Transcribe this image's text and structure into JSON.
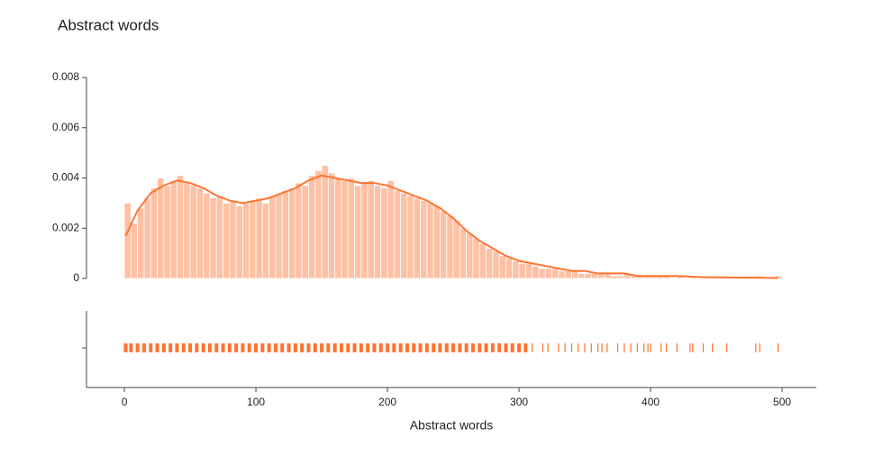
{
  "chart_data": {
    "type": "histogram",
    "title": "Abstract words",
    "x_label": "Abstract words",
    "color": "#ff7433",
    "bins": [
      0,
      5,
      10,
      15,
      20,
      25,
      30,
      35,
      40,
      45,
      50,
      55,
      60,
      65,
      70,
      75,
      80,
      85,
      90,
      95,
      100,
      105,
      110,
      115,
      120,
      125,
      130,
      135,
      140,
      145,
      150,
      155,
      160,
      165,
      170,
      175,
      180,
      185,
      190,
      195,
      200,
      205,
      210,
      215,
      220,
      225,
      230,
      235,
      240,
      245,
      250,
      255,
      260,
      265,
      270,
      275,
      280,
      285,
      290,
      295,
      300,
      305,
      310,
      315,
      320,
      325,
      330,
      335,
      340,
      345,
      350,
      355,
      360,
      365,
      370,
      375,
      380,
      385,
      390,
      395,
      400,
      405,
      410,
      415,
      420,
      425,
      430,
      435,
      440,
      445,
      450,
      455,
      460,
      465,
      470,
      475,
      480,
      485,
      490,
      495,
      500
    ],
    "values": [
      0.003,
      0.0022,
      0.0028,
      0.0032,
      0.0036,
      0.004,
      0.0037,
      0.0039,
      0.0041,
      0.0038,
      0.0037,
      0.0036,
      0.0034,
      0.0032,
      0.0033,
      0.003,
      0.0031,
      0.0029,
      0.003,
      0.0031,
      0.0032,
      0.003,
      0.0033,
      0.0034,
      0.0035,
      0.0036,
      0.0038,
      0.0037,
      0.0041,
      0.0043,
      0.0045,
      0.0042,
      0.004,
      0.0039,
      0.004,
      0.0037,
      0.0038,
      0.0039,
      0.0037,
      0.0036,
      0.0039,
      0.0035,
      0.0034,
      0.0033,
      0.0032,
      0.0031,
      0.003,
      0.0029,
      0.0027,
      0.0025,
      0.0023,
      0.002,
      0.0018,
      0.0016,
      0.0014,
      0.0012,
      0.0011,
      0.0009,
      0.0008,
      0.0007,
      0.0006,
      0.0006,
      0.0005,
      0.0004,
      0.0004,
      0.0004,
      0.0003,
      0.0003,
      0.0003,
      0.0002,
      0.0002,
      0.0002,
      0.0002,
      0.0002,
      0.0001,
      0.0001,
      0.0002,
      0.0001,
      0.0001,
      0.0001,
      0.0001,
      0.0001,
      0.0001,
      0,
      0.0001,
      0,
      0.0001,
      0,
      0.0001,
      0,
      0,
      0.0001,
      0,
      0,
      0,
      0,
      0.0001,
      0,
      0,
      0.0001
    ],
    "kde": {
      "x": [
        1,
        10,
        20,
        30,
        40,
        50,
        60,
        70,
        80,
        90,
        100,
        110,
        120,
        130,
        140,
        150,
        160,
        170,
        180,
        190,
        200,
        210,
        220,
        230,
        240,
        250,
        260,
        270,
        280,
        290,
        300,
        310,
        320,
        330,
        340,
        350,
        360,
        370,
        380,
        390,
        400,
        420,
        440,
        460,
        480,
        497
      ],
      "values": [
        0.0017,
        0.0027,
        0.0034,
        0.0037,
        0.0039,
        0.0038,
        0.0036,
        0.0033,
        0.0031,
        0.003,
        0.0031,
        0.0032,
        0.0034,
        0.0036,
        0.0039,
        0.0041,
        0.004,
        0.0039,
        0.0038,
        0.0038,
        0.0037,
        0.0035,
        0.0033,
        0.0031,
        0.0028,
        0.0024,
        0.0019,
        0.0015,
        0.0012,
        0.0009,
        0.0007,
        0.0006,
        0.0005,
        0.0004,
        0.0003,
        0.0003,
        0.0002,
        0.0002,
        0.0002,
        0.0001,
        0.0001,
        0.0001,
        5e-05,
        4e-05,
        3e-05,
        2e-05
      ]
    },
    "rug": [
      1,
      5,
      10,
      15,
      20,
      25,
      30,
      35,
      40,
      45,
      50,
      55,
      60,
      65,
      70,
      75,
      80,
      85,
      90,
      95,
      100,
      105,
      110,
      115,
      120,
      125,
      130,
      135,
      140,
      145,
      150,
      155,
      160,
      165,
      170,
      175,
      180,
      185,
      190,
      195,
      200,
      205,
      210,
      215,
      220,
      225,
      230,
      235,
      240,
      245,
      250,
      255,
      260,
      265,
      270,
      275,
      280,
      285,
      290,
      295,
      300,
      305,
      310,
      318,
      322,
      330,
      335,
      340,
      345,
      350,
      355,
      360,
      363,
      367,
      375,
      380,
      385,
      390,
      395,
      398,
      400,
      408,
      412,
      420,
      430,
      432,
      440,
      447,
      458,
      480,
      483,
      497
    ],
    "xlim": [
      -28.8,
      526
    ],
    "xticks": [
      0,
      100,
      200,
      300,
      400,
      500
    ],
    "ylim": [
      0,
      0.008
    ],
    "yticks": [
      0,
      0.002,
      0.004,
      0.006,
      0.008
    ]
  }
}
